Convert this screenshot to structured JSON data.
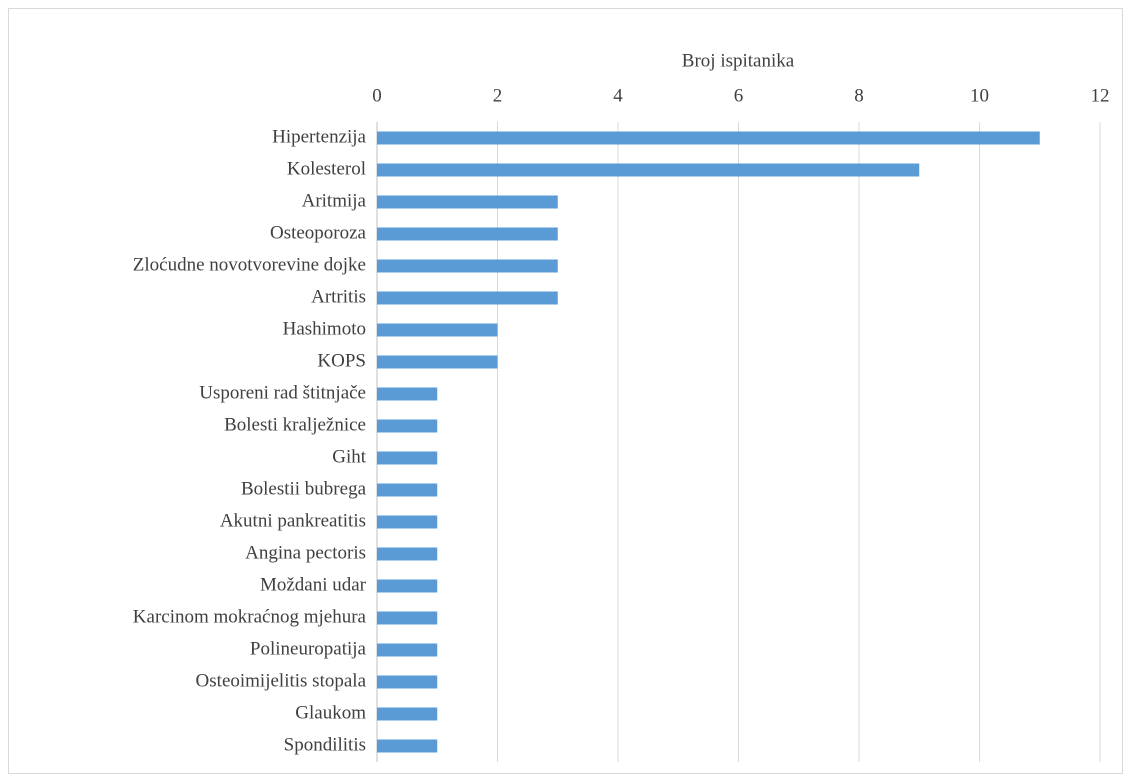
{
  "chart_data": {
    "type": "hbar",
    "x_label": "Broj ispitanika",
    "categories": [
      "Hipertenzija",
      "Kolesterol",
      "Aritmija",
      "Osteoporoza",
      "Zloćudne novotvorevine dojke",
      "Artritis",
      "Hashimoto",
      "KOPS",
      "Usporeni rad štitnjače",
      "Bolesti kralježnice",
      "Giht",
      "Bolestii bubrega",
      "Akutni pankreatitis",
      "Angina pectoris",
      "Moždani udar",
      "Karcinom mokraćnog mjehura",
      "Polineuropatija",
      "Osteoimijelitis stopala",
      "Glaukom",
      "Spondilitis"
    ],
    "values": [
      11,
      9,
      3,
      3,
      3,
      3,
      2,
      2,
      1,
      1,
      1,
      1,
      1,
      1,
      1,
      1,
      1,
      1,
      1,
      1
    ],
    "color": "#5b9bd5",
    "xlim": [
      0,
      12
    ],
    "xticks": [
      0,
      2,
      4,
      6,
      8,
      10,
      12
    ],
    "grid": true
  }
}
